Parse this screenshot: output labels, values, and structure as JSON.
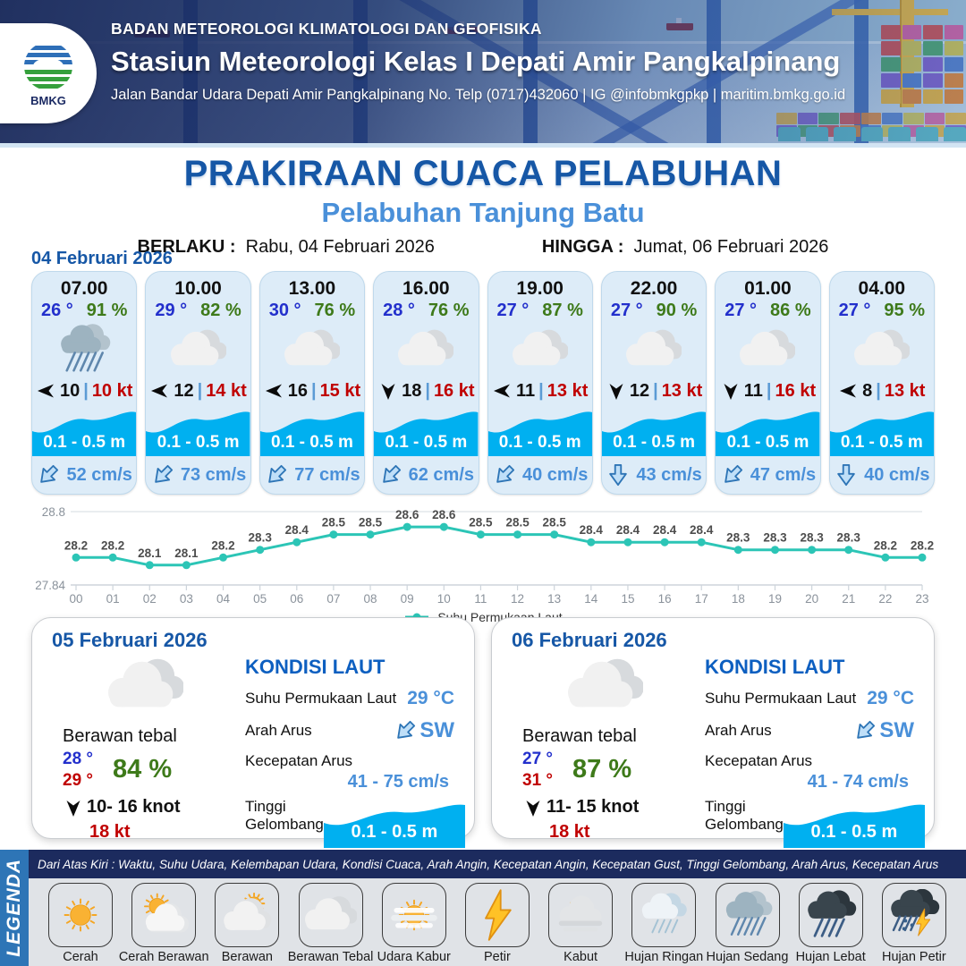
{
  "header": {
    "logo_text": "BMKG",
    "agency": "BADAN METEOROLOGI KLIMATOLOGI DAN GEOFISIKA",
    "station": "Stasiun Meteorologi Kelas I Depati Amir Pangkalpinang",
    "address": "Jalan Bandar Udara Depati Amir Pangkalpinang No. Telp (0717)432060 | IG @infobmkgpkp | maritim.bmkg.go.id"
  },
  "title": {
    "main": "PRAKIRAAN CUACA PELABUHAN",
    "subtitle": "Pelabuhan Tanjung Batu",
    "berlaku_label": "BERLAKU :",
    "berlaku_value": "Rabu, 04 Februari 2026",
    "hingga_label": "HINGGA :",
    "hingga_value": "Jumat, 06 Februari 2026"
  },
  "hourly": {
    "date_label": "04 Februari 2026",
    "cards": [
      {
        "time": "07.00",
        "temp": "26 °",
        "humidity": "91 %",
        "icon": "hujan-sedang",
        "wind_dir": "left",
        "wind_speed": "10",
        "gust": "10 kt",
        "wave_height": "0.1 - 0.5 m",
        "current_dir": "sw",
        "current_speed": "52 cm/s"
      },
      {
        "time": "10.00",
        "temp": "29 °",
        "humidity": "82 %",
        "icon": "berawan-tebal",
        "wind_dir": "left",
        "wind_speed": "12",
        "gust": "14 kt",
        "wave_height": "0.1 - 0.5 m",
        "current_dir": "sw",
        "current_speed": "73 cm/s"
      },
      {
        "time": "13.00",
        "temp": "30 °",
        "humidity": "76 %",
        "icon": "berawan-tebal",
        "wind_dir": "left",
        "wind_speed": "16",
        "gust": "15 kt",
        "wave_height": "0.1 - 0.5 m",
        "current_dir": "sw",
        "current_speed": "77 cm/s"
      },
      {
        "time": "16.00",
        "temp": "28 °",
        "humidity": "76 %",
        "icon": "berawan-tebal",
        "wind_dir": "down",
        "wind_speed": "18",
        "gust": "16 kt",
        "wave_height": "0.1 - 0.5 m",
        "current_dir": "sw",
        "current_speed": "62 cm/s"
      },
      {
        "time": "19.00",
        "temp": "27 °",
        "humidity": "87 %",
        "icon": "berawan-tebal",
        "wind_dir": "left",
        "wind_speed": "11",
        "gust": "13 kt",
        "wave_height": "0.1 - 0.5 m",
        "current_dir": "sw",
        "current_speed": "40 cm/s"
      },
      {
        "time": "22.00",
        "temp": "27 °",
        "humidity": "90 %",
        "icon": "berawan-tebal",
        "wind_dir": "down",
        "wind_speed": "12",
        "gust": "13 kt",
        "wave_height": "0.1 - 0.5 m",
        "current_dir": "down",
        "current_speed": "43 cm/s"
      },
      {
        "time": "01.00",
        "temp": "27 °",
        "humidity": "86 %",
        "icon": "berawan-tebal",
        "wind_dir": "down",
        "wind_speed": "11",
        "gust": "16 kt",
        "wave_height": "0.1 - 0.5 m",
        "current_dir": "sw",
        "current_speed": "47 cm/s"
      },
      {
        "time": "04.00",
        "temp": "27 °",
        "humidity": "95 %",
        "icon": "berawan-tebal",
        "wind_dir": "left",
        "wind_speed": "8",
        "gust": "13 kt",
        "wave_height": "0.1 - 0.5 m",
        "current_dir": "down",
        "current_speed": "40 cm/s"
      }
    ]
  },
  "chart_data": {
    "type": "line",
    "x": [
      "00",
      "01",
      "02",
      "03",
      "04",
      "05",
      "06",
      "07",
      "08",
      "09",
      "10",
      "11",
      "12",
      "13",
      "14",
      "15",
      "16",
      "17",
      "18",
      "19",
      "20",
      "21",
      "22",
      "23"
    ],
    "series": [
      {
        "name": "Suhu Permukaan Laut",
        "values": [
          28.2,
          28.2,
          28.1,
          28.1,
          28.2,
          28.3,
          28.4,
          28.5,
          28.5,
          28.6,
          28.6,
          28.5,
          28.5,
          28.5,
          28.4,
          28.4,
          28.4,
          28.4,
          28.3,
          28.3,
          28.3,
          28.3,
          28.2,
          28.2
        ]
      }
    ],
    "ylim": [
      27.84,
      28.8
    ],
    "ytick_labels": [
      "27.84",
      "28.8"
    ],
    "legend_position": "bottom",
    "grid": "top-and-baseline",
    "line_color": "#2cc5b6"
  },
  "daily": [
    {
      "date": "05 Februari 2026",
      "icon": "berawan-tebal",
      "condition": "Berawan tebal",
      "temp_min": "28 °",
      "temp_max": "29 °",
      "humidity": "84 %",
      "wind_range": "10- 16 knot",
      "gust": "18 kt",
      "sea": {
        "title": "KONDISI LAUT",
        "sst_label": "Suhu Permukaan Laut",
        "sst_value": "29 °C",
        "current_dir_label": "Arah Arus",
        "current_dir_value": "SW",
        "current_speed_label": "Kecepatan Arus",
        "current_speed_value": "41 - 75 cm/s",
        "wave_label": "Tinggi Gelombang",
        "wave_value": "0.1 - 0.5 m"
      }
    },
    {
      "date": "06 Februari 2026",
      "icon": "berawan-tebal",
      "condition": "Berawan tebal",
      "temp_min": "27 °",
      "temp_max": "31 °",
      "humidity": "87 %",
      "wind_range": "11- 15 knot",
      "gust": "18 kt",
      "sea": {
        "title": "KONDISI LAUT",
        "sst_label": "Suhu Permukaan Laut",
        "sst_value": "29 °C",
        "current_dir_label": "Arah Arus",
        "current_dir_value": "SW",
        "current_speed_label": "Kecepatan Arus",
        "current_speed_value": "41 - 74 cm/s",
        "wave_label": "Tinggi Gelombang",
        "wave_value": "0.1 - 0.5 m"
      }
    }
  ],
  "legend": {
    "title": "LEGENDA",
    "note": "Dari Atas Kiri : Waktu, Suhu Udara, Kelembapan Udara, Kondisi Cuaca, Arah Angin, Kecepatan Angin, Kecepatan Gust, Tinggi Gelombang, Arah Arus, Kecepatan Arus",
    "items": [
      {
        "label": "Cerah",
        "icon": "cerah"
      },
      {
        "label": "Cerah Berawan",
        "icon": "cerah-berawan"
      },
      {
        "label": "Berawan",
        "icon": "berawan"
      },
      {
        "label": "Berawan Tebal",
        "icon": "berawan-tebal"
      },
      {
        "label": "Udara Kabur",
        "icon": "udara-kabur"
      },
      {
        "label": "Petir",
        "icon": "petir"
      },
      {
        "label": "Kabut",
        "icon": "kabut"
      },
      {
        "label": "Hujan Ringan",
        "icon": "hujan-ringan"
      },
      {
        "label": "Hujan Sedang",
        "icon": "hujan-sedang"
      },
      {
        "label": "Hujan Lebat",
        "icon": "hujan-lebat"
      },
      {
        "label": "Hujan Petir",
        "icon": "hujan-petir"
      }
    ]
  },
  "colors": {
    "title_blue": "#1657a6",
    "subtitle_blue": "#4a90d9",
    "temp_blue": "#2330cc",
    "humidity_green": "#3e7a1a",
    "gust_red": "#c00000",
    "wave_cyan": "#00b0f0",
    "current_blue": "#4a90d9",
    "chart_teal": "#2cc5b6",
    "legend_navy": "#1c2b5e",
    "legend_bar_blue": "#2e75b6"
  }
}
